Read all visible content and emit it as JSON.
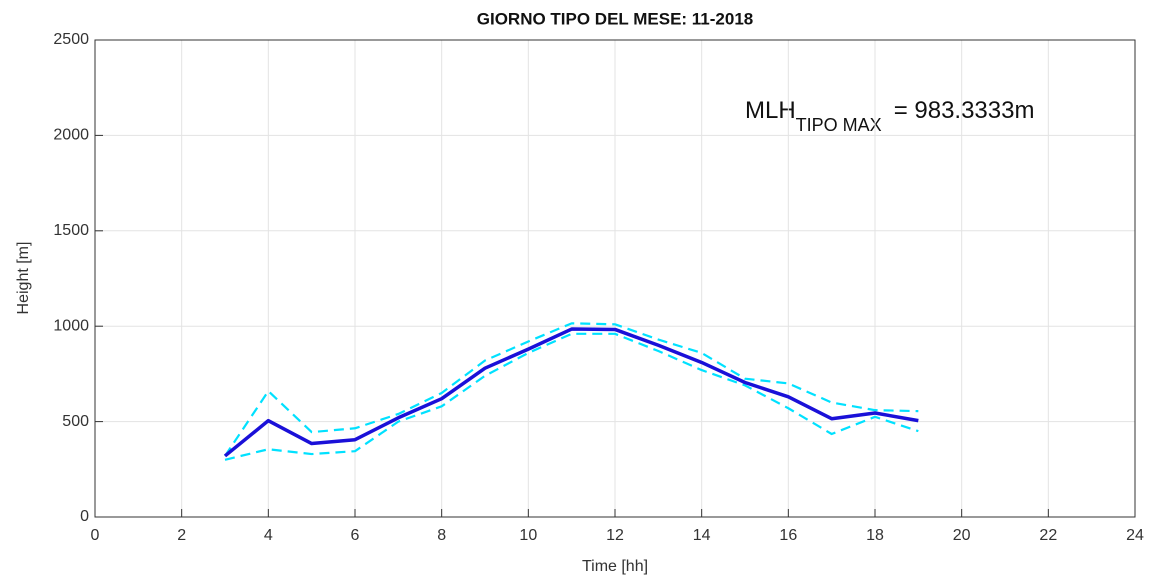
{
  "chart_data": {
    "type": "line",
    "title": "GIORNO TIPO DEL MESE:  11-2018",
    "x_label": "Time [hh]",
    "y_label": "Height [m]",
    "annotation": {
      "text": "MLH",
      "subscript": "TIPO MAX",
      "suffix": "= 983.3333m"
    },
    "x": [
      3,
      4,
      5,
      6,
      7,
      8,
      9,
      10,
      11,
      12,
      13,
      14,
      15,
      16,
      17,
      18,
      19
    ],
    "series": [
      {
        "color": "#00e1ff",
        "dashed": true,
        "width": 2.2,
        "values": [
          320,
          660,
          445,
          465,
          540,
          650,
          820,
          920,
          1015,
          1010,
          930,
          860,
          725,
          700,
          600,
          560,
          555
        ]
      },
      {
        "color": "#00e1ff",
        "dashed": true,
        "width": 2.2,
        "values": [
          300,
          355,
          330,
          345,
          500,
          580,
          740,
          860,
          960,
          960,
          870,
          770,
          690,
          570,
          435,
          525,
          450
        ]
      },
      {
        "color": "#1a10d8",
        "dashed": false,
        "width": 3.5,
        "values": [
          320,
          505,
          385,
          405,
          520,
          620,
          780,
          880,
          985,
          983,
          900,
          810,
          705,
          630,
          515,
          545,
          505
        ]
      }
    ],
    "xlim": [
      0,
      24
    ],
    "xticks": [
      0,
      2,
      4,
      6,
      8,
      10,
      12,
      14,
      16,
      18,
      20,
      22,
      24
    ],
    "ylim": [
      0,
      2500
    ],
    "yticks": [
      0,
      500,
      1000,
      1500,
      2000,
      2500
    ],
    "grid": true
  }
}
